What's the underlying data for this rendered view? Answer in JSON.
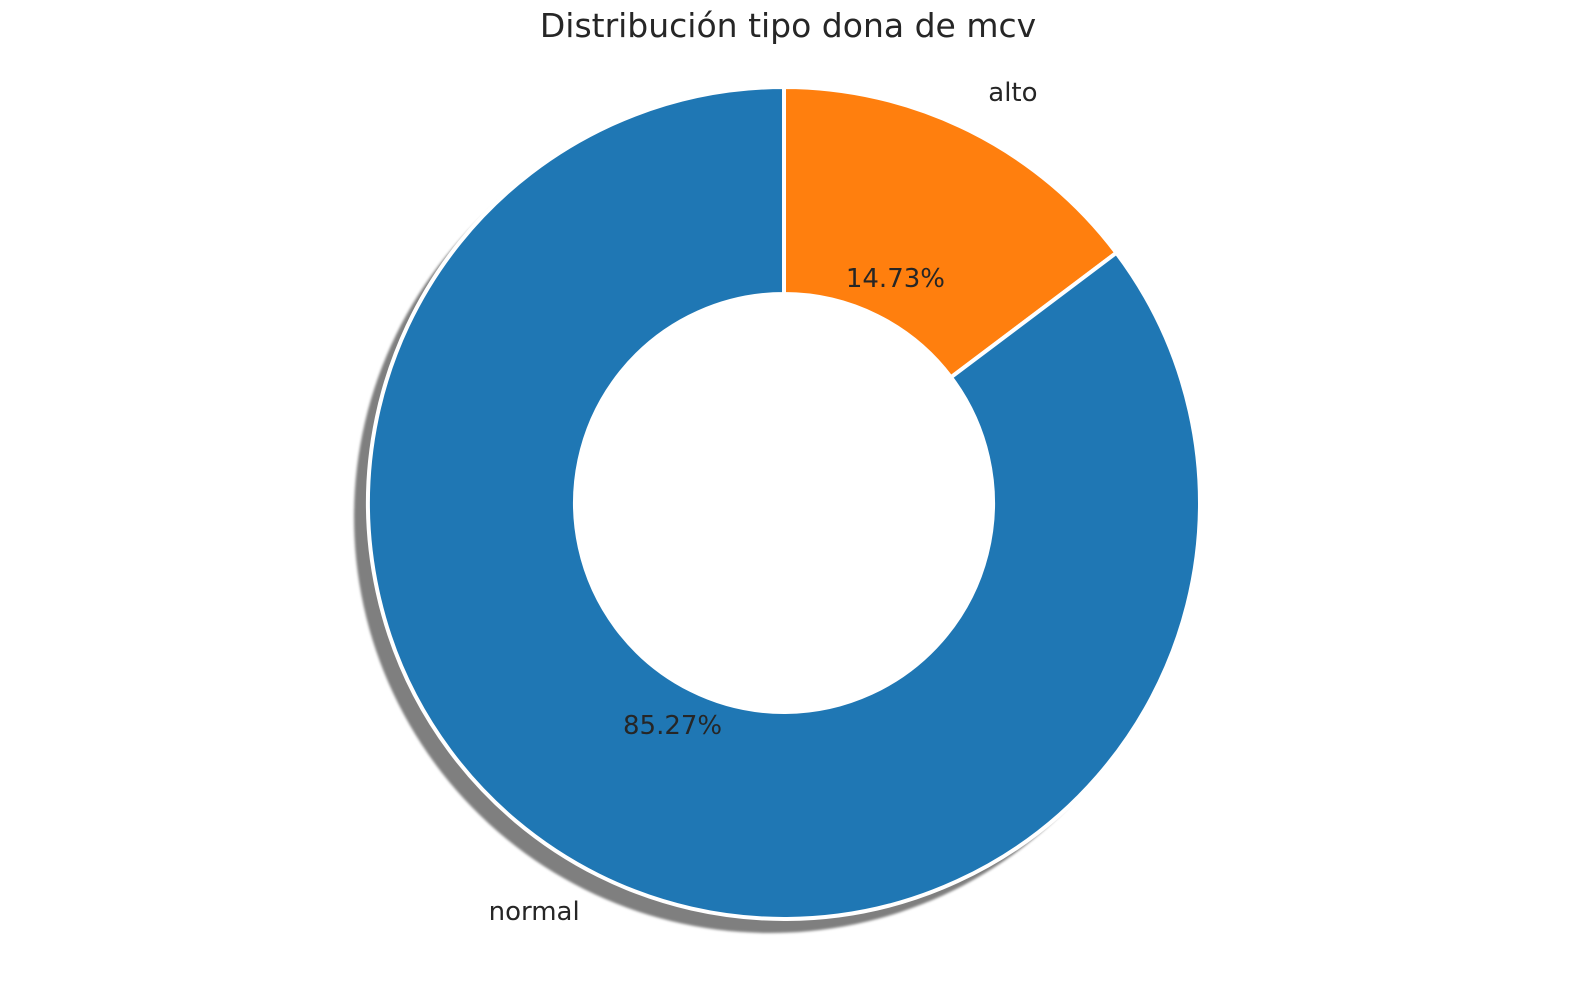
{
  "chart_data": {
    "type": "pie",
    "title": "Distribución tipo dona de mcv",
    "donut": true,
    "shadow": true,
    "start_angle_deg": 90,
    "direction": "clockwise",
    "slices": [
      {
        "label": "alto",
        "value": 14.73,
        "pct_label": "14.73%",
        "color": "#ff7f0e"
      },
      {
        "label": "normal",
        "value": 85.27,
        "pct_label": "85.27%",
        "color": "#1f77b4"
      }
    ]
  }
}
